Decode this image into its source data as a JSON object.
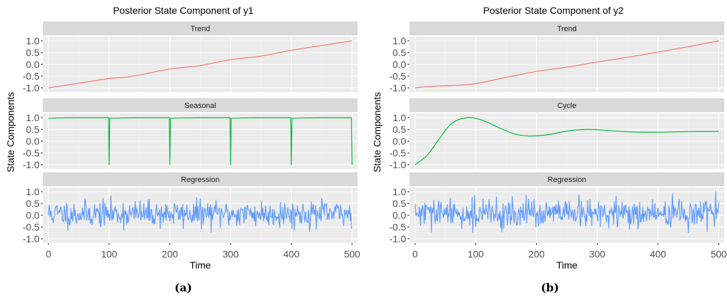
{
  "figure": {
    "captions": [
      "(a)",
      "(b)"
    ]
  },
  "chart_data": [
    {
      "type": "line",
      "title": "Posterior State Component of y1",
      "xlabel": "Time",
      "ylabel": "State Components",
      "xlim": [
        0,
        500
      ],
      "x_ticks": [
        0,
        100,
        200,
        300,
        400,
        500
      ],
      "grid": true,
      "facets": [
        {
          "label": "Trend",
          "color": "#F8766D",
          "ylim": [
            -1.0,
            1.0
          ],
          "y_ticks": [
            "1.0",
            "0.5",
            "0.0",
            "-0.5",
            "-1.0"
          ],
          "series": [
            {
              "x": [
                0,
                50,
                100,
                125,
                150,
                200,
                250,
                300,
                350,
                400,
                450,
                500
              ],
              "y": [
                -1.0,
                -0.8,
                -0.6,
                -0.55,
                -0.45,
                -0.2,
                -0.05,
                0.2,
                0.35,
                0.6,
                0.8,
                1.0
              ]
            }
          ]
        },
        {
          "label": "Seasonal",
          "color": "#00BA38",
          "ylim": [
            -1.0,
            1.0
          ],
          "y_ticks": [
            "1.0",
            "0.5",
            "0.0",
            "-0.5",
            "-1.0"
          ],
          "series": [
            {
              "x": [
                0,
                50,
                99,
                100,
                101,
                150,
                199,
                200,
                201,
                250,
                299,
                300,
                301,
                350,
                399,
                400,
                401,
                450,
                499,
                500
              ],
              "y": [
                0.98,
                1.0,
                1.0,
                -1.0,
                0.98,
                1.0,
                1.0,
                -1.0,
                0.98,
                1.0,
                1.0,
                -1.0,
                0.98,
                1.0,
                1.0,
                -1.0,
                0.98,
                1.0,
                1.0,
                -1.0
              ]
            }
          ]
        },
        {
          "label": "Regression",
          "color": "#619CFF",
          "ylim": [
            -1.0,
            1.0
          ],
          "y_ticks": [
            "1.0",
            "0.5",
            "0.0",
            "-0.5",
            "-1.0"
          ],
          "series": [
            {
              "x": [
                0,
                500
              ],
              "y": [
                0.06,
                0.06
              ],
              "noisy": true,
              "noise_sd": 0.28,
              "seed": 11
            }
          ]
        }
      ]
    },
    {
      "type": "line",
      "title": "Posterior State Component of y2",
      "xlabel": "Time",
      "ylabel": "State Components",
      "xlim": [
        0,
        500
      ],
      "x_ticks": [
        0,
        100,
        200,
        300,
        400,
        500
      ],
      "grid": true,
      "facets": [
        {
          "label": "Trend",
          "color": "#F8766D",
          "ylim": [
            -1.0,
            1.0
          ],
          "y_ticks": [
            "1.0",
            "0.5",
            "0.0",
            "-0.5",
            "-1.0"
          ],
          "series": [
            {
              "x": [
                0,
                30,
                60,
                100,
                150,
                200,
                250,
                300,
                350,
                400,
                450,
                500
              ],
              "y": [
                -1.0,
                -0.93,
                -0.9,
                -0.82,
                -0.55,
                -0.3,
                -0.12,
                0.1,
                0.3,
                0.52,
                0.75,
                1.0
              ]
            }
          ]
        },
        {
          "label": "Cycle",
          "color": "#00BA38",
          "ylim": [
            -1.0,
            1.0
          ],
          "y_ticks": [
            "1.0",
            "0.5",
            "0.0",
            "-0.5",
            "-1.0"
          ],
          "series": [
            {
              "x": [
                0,
                20,
                40,
                60,
                85,
                110,
                140,
                165,
                190,
                220,
                250,
                285,
                320,
                360,
                400,
                450,
                500
              ],
              "y": [
                -1.0,
                -0.6,
                0.1,
                0.75,
                1.0,
                0.9,
                0.55,
                0.3,
                0.22,
                0.28,
                0.43,
                0.5,
                0.45,
                0.39,
                0.38,
                0.41,
                0.42
              ]
            }
          ]
        },
        {
          "label": "Regression",
          "color": "#619CFF",
          "ylim": [
            -1.0,
            1.0
          ],
          "y_ticks": [
            "1.0",
            "0.5",
            "0.0",
            "-0.5",
            "-1.0"
          ],
          "series": [
            {
              "x": [
                0,
                500
              ],
              "y": [
                0.06,
                0.06
              ],
              "noisy": true,
              "noise_sd": 0.3,
              "seed": 29
            }
          ]
        }
      ]
    }
  ]
}
